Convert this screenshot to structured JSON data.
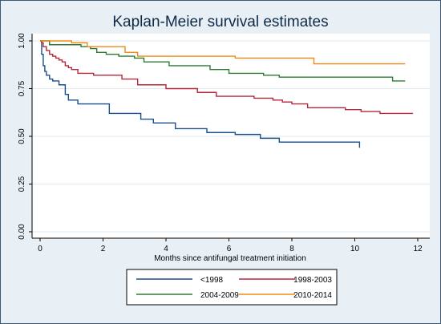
{
  "chart_data": {
    "type": "line",
    "step": true,
    "title": "Kaplan-Meier survival estimates",
    "xlabel": "Months since antifungal treatment initiation",
    "ylabel": "",
    "xlim": [
      0,
      12
    ],
    "ylim": [
      0,
      1
    ],
    "xticks": [
      "0",
      "2",
      "4",
      "6",
      "8",
      "10",
      "12"
    ],
    "yticks": [
      "0.00",
      "0.25",
      "0.50",
      "0.75",
      "1.00"
    ],
    "grid": true,
    "legend": "bottom",
    "series": [
      {
        "name": "<1998",
        "color": "#1a4f8a",
        "x": [
          0,
          0.05,
          0.1,
          0.15,
          0.2,
          0.3,
          0.4,
          0.6,
          0.8,
          0.9,
          1.2,
          2.2,
          3.2,
          3.6,
          4.3,
          5.3,
          6.2,
          7.0,
          7.6,
          10.1,
          10.15
        ],
        "y": [
          1.0,
          0.93,
          0.87,
          0.84,
          0.82,
          0.8,
          0.79,
          0.77,
          0.72,
          0.69,
          0.67,
          0.62,
          0.59,
          0.57,
          0.54,
          0.52,
          0.51,
          0.49,
          0.47,
          0.47,
          0.44
        ]
      },
      {
        "name": "1998-2003",
        "color": "#b5283a",
        "x": [
          0,
          0.05,
          0.1,
          0.2,
          0.3,
          0.4,
          0.5,
          0.6,
          0.7,
          0.8,
          0.9,
          1.0,
          1.2,
          1.7,
          2.6,
          3.1,
          4.0,
          5.0,
          5.6,
          6.8,
          7.4,
          7.7,
          8.0,
          8.5,
          9.2,
          9.7,
          10.2,
          10.8,
          11.85
        ],
        "y": [
          1.0,
          0.99,
          0.97,
          0.95,
          0.93,
          0.92,
          0.91,
          0.9,
          0.89,
          0.87,
          0.86,
          0.85,
          0.83,
          0.82,
          0.8,
          0.77,
          0.75,
          0.73,
          0.71,
          0.7,
          0.69,
          0.68,
          0.67,
          0.65,
          0.65,
          0.64,
          0.63,
          0.62,
          0.62
        ]
      },
      {
        "name": "2004-2009",
        "color": "#2e7a33",
        "x": [
          0,
          0.3,
          1.3,
          1.6,
          1.8,
          2.1,
          2.5,
          3.0,
          3.3,
          4.1,
          5.4,
          6.0,
          7.1,
          7.6,
          11.2,
          11.6
        ],
        "y": [
          1.0,
          0.98,
          0.97,
          0.96,
          0.94,
          0.93,
          0.92,
          0.91,
          0.89,
          0.87,
          0.85,
          0.83,
          0.82,
          0.81,
          0.79,
          0.79
        ]
      },
      {
        "name": "2010-2014",
        "color": "#f08a14",
        "x": [
          0,
          1.0,
          1.5,
          2.7,
          3.1,
          6.2,
          8.7,
          11.6
        ],
        "y": [
          1.0,
          0.99,
          0.97,
          0.94,
          0.92,
          0.91,
          0.88,
          0.88
        ]
      }
    ]
  }
}
